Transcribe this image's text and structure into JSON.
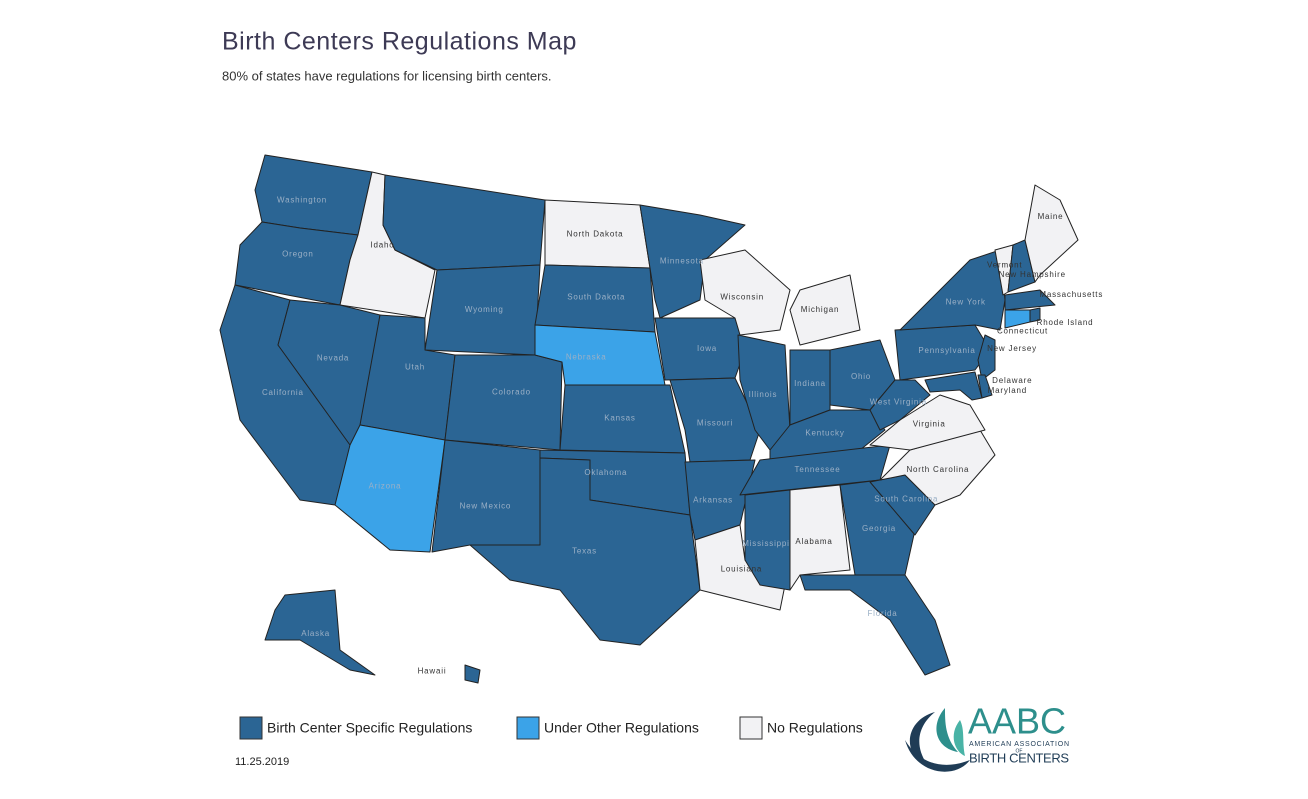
{
  "header": {
    "title": "Birth Centers Regulations Map",
    "subtitle": "80% of states have regulations for licensing birth centers."
  },
  "legend": [
    {
      "name": "Birth Center Specific Regulations",
      "color": "#2b6594"
    },
    {
      "name": "Under Other Regulations",
      "color": "#3ba3e8"
    },
    {
      "name": "No Regulations",
      "color": "#f2f2f4"
    }
  ],
  "states": [
    {
      "name": "Washington",
      "category": 0
    },
    {
      "name": "Oregon",
      "category": 0
    },
    {
      "name": "California",
      "category": 0
    },
    {
      "name": "Idaho",
      "category": 2
    },
    {
      "name": "Nevada",
      "category": 0
    },
    {
      "name": null,
      "category": 0
    },
    {
      "name": "Wyoming",
      "category": 0
    },
    {
      "name": "Utah",
      "category": 0
    },
    {
      "name": "Arizona",
      "category": 1
    },
    {
      "name": "Colorado",
      "category": 0
    },
    {
      "name": "New Mexico",
      "category": 0
    },
    {
      "name": "North Dakota",
      "category": 2
    },
    {
      "name": "South Dakota",
      "category": 0
    },
    {
      "name": "Nebraska",
      "category": 1
    },
    {
      "name": "Kansas",
      "category": 0
    },
    {
      "name": "Oklahoma",
      "category": 0
    },
    {
      "name": "Texas",
      "category": 0
    },
    {
      "name": "Minnesota",
      "category": 0
    },
    {
      "name": "Iowa",
      "category": 0
    },
    {
      "name": "Missouri",
      "category": 0
    },
    {
      "name": "Arkansas",
      "category": 0
    },
    {
      "name": "Louisiana",
      "category": 2
    },
    {
      "name": "Wisconsin",
      "category": 2
    },
    {
      "name": "Illinois",
      "category": 0
    },
    {
      "name": "Michigan",
      "category": 2
    },
    {
      "name": "Indiana",
      "category": 0
    },
    {
      "name": "Ohio",
      "category": 0
    },
    {
      "name": "Kentucky",
      "category": 0
    },
    {
      "name": "Tennessee",
      "category": 0
    },
    {
      "name": "Mississippi",
      "category": 0
    },
    {
      "name": "Alabama",
      "category": 2
    },
    {
      "name": "Georgia",
      "category": 0
    },
    {
      "name": "Florida",
      "category": 0
    },
    {
      "name": "South Carolina",
      "category": 0
    },
    {
      "name": "North Carolina",
      "category": 2
    },
    {
      "name": "Virginia",
      "category": 2
    },
    {
      "name": "West Virginia",
      "category": 0
    },
    {
      "name": "Pennsylvania",
      "category": 0
    },
    {
      "name": "New York",
      "category": 0
    },
    {
      "name": "Vermont",
      "category": 2
    },
    {
      "name": "New Hampshire",
      "category": 0
    },
    {
      "name": "Maine",
      "category": 2
    },
    {
      "name": "Massachusetts",
      "category": 0
    },
    {
      "name": "Rhode Island",
      "category": 0
    },
    {
      "name": "Connecticut",
      "category": 1
    },
    {
      "name": "New Jersey",
      "category": 0
    },
    {
      "name": "Delaware",
      "category": 0
    },
    {
      "name": "Maryland",
      "category": 0
    },
    {
      "name": "Alaska",
      "category": 0
    },
    {
      "name": "Hawaii",
      "category": 0
    }
  ],
  "footer": {
    "date": "11.25.2019"
  },
  "logo": {
    "mark": "AABC",
    "line1": "AMERICAN ASSOCIATION",
    "line2": "OF",
    "line3": "BIRTH CENTERS"
  }
}
